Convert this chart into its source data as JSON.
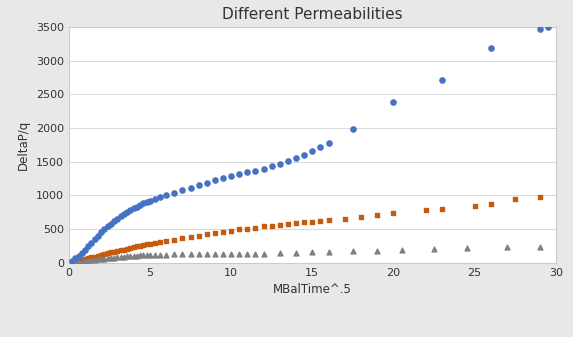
{
  "title": "Different Permeabilities",
  "xlabel": "MBalTime^.5",
  "ylabel": "DeltaP/q",
  "xlim": [
    0,
    30
  ],
  "ylim": [
    0,
    3500
  ],
  "xticks": [
    0,
    5,
    10,
    15,
    20,
    25,
    30
  ],
  "yticks": [
    0,
    500,
    1000,
    1500,
    2000,
    2500,
    3000,
    3500
  ],
  "background_color": "#e8e8e8",
  "plot_bg_color": "#ffffff",
  "base_color": "#c55a11",
  "k10_color": "#808080",
  "k01_color": "#4472c4",
  "base_x": [
    0.2,
    0.4,
    0.6,
    0.8,
    1.0,
    1.2,
    1.4,
    1.6,
    1.8,
    2.0,
    2.2,
    2.4,
    2.6,
    2.8,
    3.0,
    3.2,
    3.4,
    3.6,
    3.8,
    4.0,
    4.2,
    4.4,
    4.6,
    4.8,
    5.0,
    5.3,
    5.6,
    6.0,
    6.5,
    7.0,
    7.5,
    8.0,
    8.5,
    9.0,
    9.5,
    10.0,
    10.5,
    11.0,
    11.5,
    12.0,
    12.5,
    13.0,
    13.5,
    14.0,
    14.5,
    15.0,
    15.5,
    16.0,
    17.0,
    18.0,
    19.0,
    20.0,
    22.0,
    23.0,
    25.0,
    26.0,
    27.5,
    29.0
  ],
  "base_y": [
    10,
    20,
    30,
    42,
    55,
    68,
    80,
    92,
    105,
    118,
    130,
    142,
    155,
    165,
    175,
    188,
    198,
    210,
    220,
    232,
    243,
    253,
    263,
    273,
    282,
    295,
    308,
    325,
    345,
    365,
    385,
    405,
    422,
    440,
    458,
    478,
    495,
    508,
    522,
    540,
    552,
    565,
    578,
    590,
    600,
    612,
    622,
    635,
    658,
    678,
    710,
    745,
    782,
    802,
    840,
    868,
    950,
    980
  ],
  "k10_x": [
    0.2,
    0.4,
    0.6,
    0.8,
    1.0,
    1.2,
    1.4,
    1.6,
    1.8,
    2.0,
    2.2,
    2.4,
    2.6,
    2.8,
    3.0,
    3.2,
    3.4,
    3.6,
    3.8,
    4.0,
    4.2,
    4.4,
    4.6,
    4.8,
    5.0,
    5.3,
    5.6,
    6.0,
    6.5,
    7.0,
    7.5,
    8.0,
    8.5,
    9.0,
    9.5,
    10.0,
    10.5,
    11.0,
    11.5,
    12.0,
    13.0,
    14.0,
    15.0,
    16.0,
    17.5,
    19.0,
    20.5,
    22.5,
    24.5,
    27.0,
    29.0
  ],
  "k10_y": [
    5,
    10,
    15,
    20,
    26,
    32,
    38,
    44,
    50,
    56,
    62,
    68,
    74,
    79,
    84,
    89,
    93,
    97,
    101,
    105,
    108,
    111,
    113,
    115,
    117,
    119,
    121,
    123,
    125,
    127,
    128,
    130,
    131,
    132,
    133,
    133,
    134,
    135,
    136,
    138,
    142,
    148,
    155,
    162,
    172,
    182,
    192,
    205,
    218,
    232,
    242
  ],
  "k01_x": [
    0.2,
    0.4,
    0.6,
    0.8,
    1.0,
    1.2,
    1.4,
    1.6,
    1.8,
    2.0,
    2.2,
    2.4,
    2.6,
    2.8,
    3.0,
    3.2,
    3.4,
    3.6,
    3.8,
    4.0,
    4.2,
    4.4,
    4.6,
    4.8,
    5.0,
    5.3,
    5.6,
    6.0,
    6.5,
    7.0,
    7.5,
    8.0,
    8.5,
    9.0,
    9.5,
    10.0,
    10.5,
    11.0,
    11.5,
    12.0,
    12.5,
    13.0,
    13.5,
    14.0,
    14.5,
    15.0,
    15.5,
    16.0,
    17.5,
    20.0,
    23.0,
    26.0,
    29.0,
    29.5
  ],
  "k01_y": [
    30,
    65,
    105,
    148,
    195,
    248,
    302,
    355,
    405,
    452,
    497,
    540,
    580,
    618,
    655,
    690,
    722,
    752,
    780,
    808,
    835,
    860,
    882,
    903,
    922,
    948,
    970,
    1000,
    1042,
    1082,
    1118,
    1155,
    1190,
    1222,
    1255,
    1285,
    1315,
    1342,
    1368,
    1393,
    1435,
    1468,
    1510,
    1555,
    1605,
    1655,
    1715,
    1775,
    1990,
    2380,
    2720,
    3190,
    3470,
    3500
  ]
}
